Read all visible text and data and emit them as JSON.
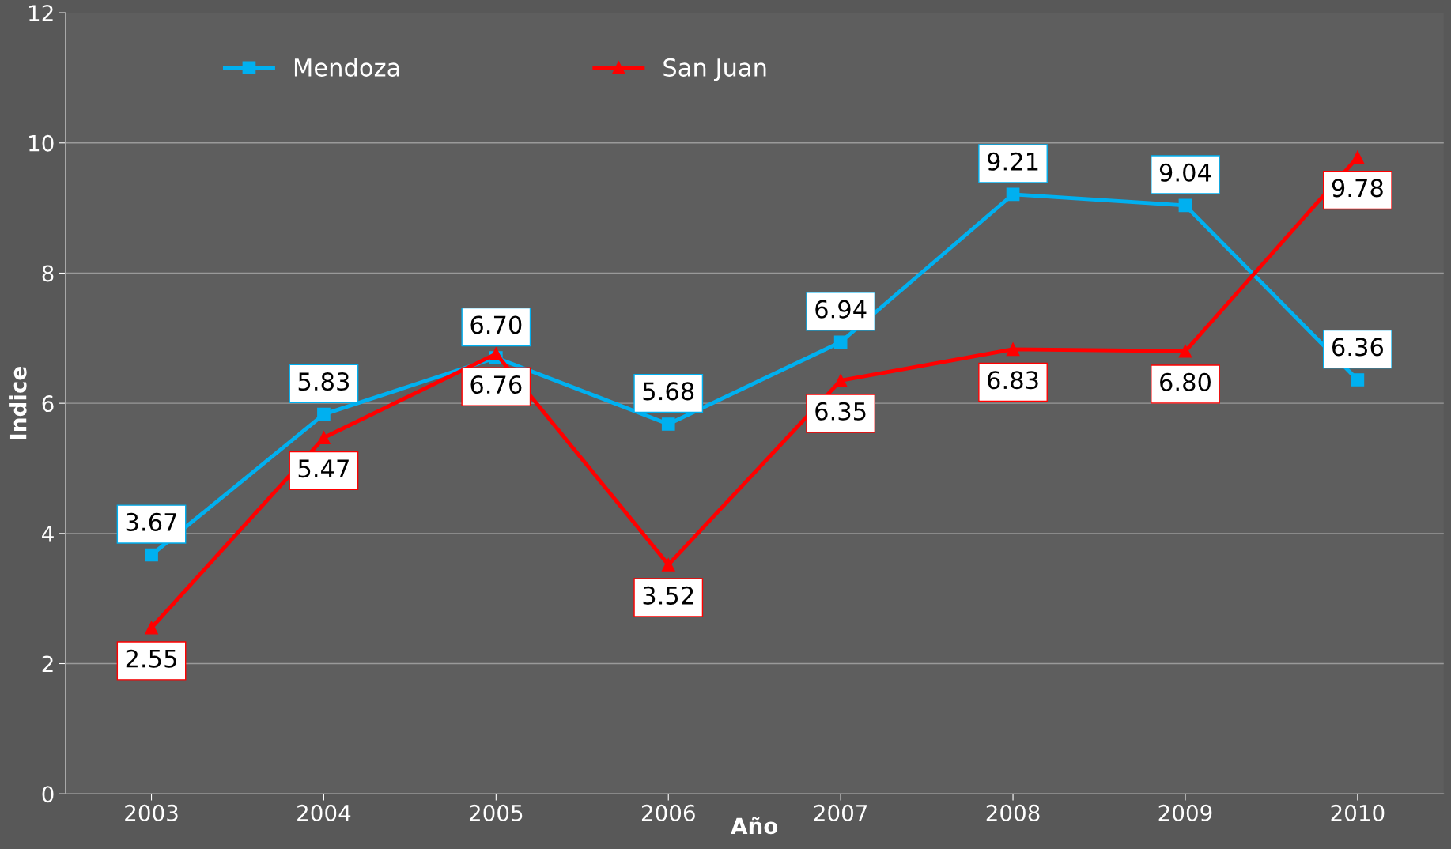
{
  "chart_data": {
    "type": "line",
    "xlabel": "Año",
    "ylabel": "Indice",
    "categories": [
      "2003",
      "2004",
      "2005",
      "2006",
      "2007",
      "2008",
      "2009",
      "2010"
    ],
    "series": [
      {
        "name": "Mendoza",
        "color": "#00b0f0",
        "marker": "square",
        "values": [
          3.67,
          5.83,
          6.7,
          5.68,
          6.94,
          9.21,
          9.04,
          6.36
        ],
        "value_labels": [
          "3.67",
          "5.83",
          "6.70",
          "5.68",
          "6.94",
          "9.21",
          "9.04",
          "6.36"
        ]
      },
      {
        "name": "San Juan",
        "color": "#ff0000",
        "marker": "triangle",
        "values": [
          2.55,
          5.47,
          6.76,
          3.52,
          6.35,
          6.83,
          6.8,
          9.78
        ],
        "value_labels": [
          "2.55",
          "5.47",
          "6.76",
          "3.52",
          "6.35",
          "6.83",
          "6.80",
          "9.78"
        ]
      }
    ],
    "ylim": [
      0,
      12
    ],
    "yticks": [
      0,
      2,
      4,
      6,
      8,
      10,
      12
    ],
    "grid": "y",
    "legend": "top left",
    "line_style": "solid"
  }
}
